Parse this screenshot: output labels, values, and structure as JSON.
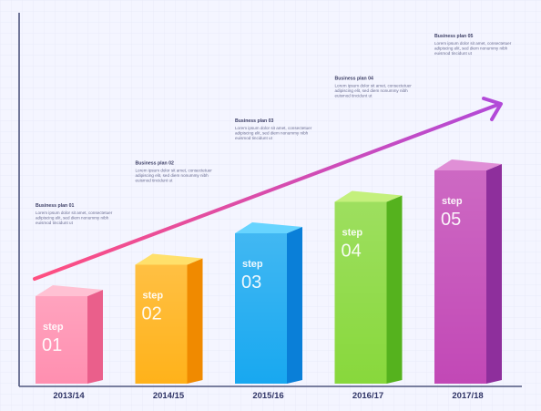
{
  "chart_data": {
    "type": "bar",
    "categories": [
      "2013/14",
      "2014/15",
      "2015/16",
      "2016/17",
      "2017/18"
    ],
    "values": [
      1,
      2,
      3,
      4,
      5
    ],
    "ylim": [
      0,
      5
    ],
    "grid": true,
    "bars": [
      {
        "step_word": "step",
        "step_num": "01",
        "front": "#ff8fb0",
        "side": "#ea5f8b",
        "top": "#ffc1d3",
        "plan_title": "Business plan 01",
        "plan_desc": [
          "Lorem ipsum dolor sit amet, consectetuer",
          "adipiscing elit, sed diem nonummy nibh",
          "euismod tincidunt ut"
        ]
      },
      {
        "step_word": "step",
        "step_num": "02",
        "front": "#ffb21a",
        "side": "#f08a00",
        "top": "#ffe06b",
        "plan_title": "Business plan 02",
        "plan_desc": [
          "Lorem ipsum dolor sit amet, consectetuer",
          "adipiscing elit, sed diem nonummy nibh",
          "euismod tincidunt ut"
        ]
      },
      {
        "step_word": "step",
        "step_num": "03",
        "front": "#18a8f0",
        "side": "#0a7fd8",
        "top": "#67d4ff",
        "plan_title": "Business plan 03",
        "plan_desc": [
          "Lorem ipsum dolor sit amet, consectetuer",
          "adipiscing elit, sed diem nonummy nibh",
          "euismod tincidunt ut"
        ]
      },
      {
        "step_word": "step",
        "step_num": "04",
        "front": "#88d83c",
        "side": "#55b21e",
        "top": "#c4f07c",
        "plan_title": "Business plan 04",
        "plan_desc": [
          "Lorem ipsum dolor sit amet, consectetuer",
          "adipiscing elit, sed diem nonummy nibh",
          "euismod tincidunt ut"
        ]
      },
      {
        "step_word": "step",
        "step_num": "05",
        "front": "#c248b6",
        "side": "#8e2f9c",
        "top": "#e08fd6",
        "plan_title": "Business plan 05",
        "plan_desc": [
          "Lorem ipsum dolor sit amet, consectetuer",
          "adipiscing elit, sed diem nonummy nibh",
          "euismod tincidunt ut"
        ]
      }
    ],
    "trend_arrow": {
      "from_color": "#ff4f80",
      "to_color": "#b24ad8"
    }
  },
  "colors": {
    "background": "#f4f5ff",
    "grid": "#e6e8f6",
    "axis": "#4f577f"
  }
}
